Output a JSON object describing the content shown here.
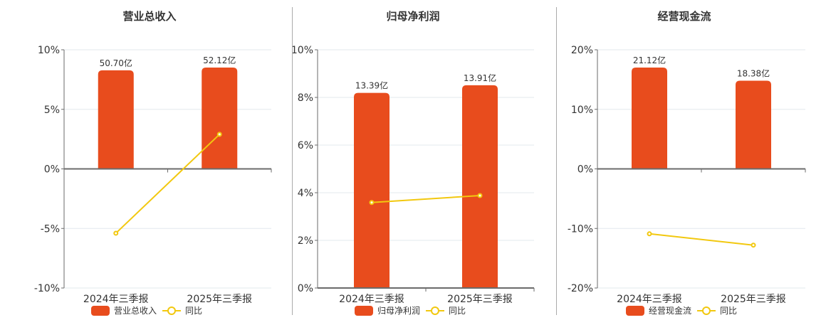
{
  "colors": {
    "bar": "#E84C1D",
    "line": "#F2C80F",
    "grid": "#E3E8EE",
    "axis": "#6B6B6B",
    "divider": "#AAAAAA",
    "text": "#333333"
  },
  "panels": [
    {
      "title": "营业总收入",
      "legend": {
        "bar_label": "营业总收入",
        "line_label": "同比"
      }
    },
    {
      "title": "归母净利润",
      "legend": {
        "bar_label": "归母净利润",
        "line_label": "同比"
      }
    },
    {
      "title": "经营现金流",
      "legend": {
        "bar_label": "经营现金流",
        "line_label": "同比"
      }
    }
  ],
  "chart_data": [
    {
      "type": "bar",
      "title": "营业总收入",
      "categories": [
        "2024年三季报",
        "2025年三季报"
      ],
      "series": [
        {
          "name": "营业总收入",
          "type": "bar",
          "values": [
            50.7,
            52.12
          ],
          "labels": [
            "50.70亿",
            "52.12亿"
          ],
          "unit": "亿"
        },
        {
          "name": "同比",
          "type": "line",
          "values": [
            -5.4,
            2.9
          ],
          "unit": "%"
        }
      ],
      "y_tick_labels": [
        "10%",
        "5%",
        "0%",
        "-5%",
        "-10%"
      ],
      "ylim": [
        -10,
        10
      ],
      "xlabel": "",
      "ylabel": "",
      "grid": true,
      "legend_position": "bottom"
    },
    {
      "type": "bar",
      "title": "归母净利润",
      "categories": [
        "2024年三季报",
        "2025年三季报"
      ],
      "series": [
        {
          "name": "归母净利润",
          "type": "bar",
          "values": [
            13.39,
            13.91
          ],
          "labels": [
            "13.39亿",
            "13.91亿"
          ],
          "unit": "亿"
        },
        {
          "name": "同比",
          "type": "line",
          "values": [
            3.59,
            3.88
          ],
          "unit": "%"
        }
      ],
      "y_tick_labels": [
        "10%",
        "8%",
        "6%",
        "4%",
        "2%",
        "0%"
      ],
      "ylim": [
        0,
        10
      ],
      "xlabel": "",
      "ylabel": "",
      "grid": true,
      "legend_position": "bottom"
    },
    {
      "type": "bar",
      "title": "经营现金流",
      "categories": [
        "2024年三季报",
        "2025年三季报"
      ],
      "series": [
        {
          "name": "经营现金流",
          "type": "bar",
          "values": [
            21.12,
            18.38
          ],
          "labels": [
            "21.12亿",
            "18.38亿"
          ],
          "unit": "亿"
        },
        {
          "name": "同比",
          "type": "line",
          "values": [
            -10.9,
            -12.8
          ],
          "unit": "%"
        }
      ],
      "y_tick_labels": [
        "20%",
        "10%",
        "0%",
        "-10%",
        "-20%"
      ],
      "ylim": [
        -20,
        20
      ],
      "xlabel": "",
      "ylabel": "",
      "grid": true,
      "legend_position": "bottom"
    }
  ]
}
